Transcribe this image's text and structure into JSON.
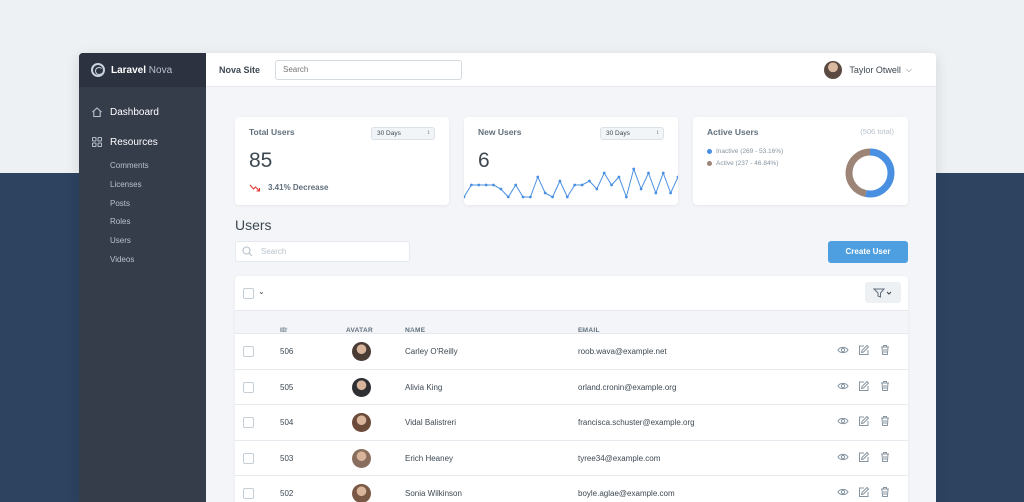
{
  "brand": {
    "name_bold": "Laravel",
    "name_light": " Nova"
  },
  "sidebar": {
    "dashboard_label": "Dashboard",
    "resources_label": "Resources",
    "items": [
      {
        "label": "Comments"
      },
      {
        "label": "Licenses"
      },
      {
        "label": "Posts"
      },
      {
        "label": "Roles"
      },
      {
        "label": "Users"
      },
      {
        "label": "Videos"
      }
    ]
  },
  "header": {
    "site_name": "Nova Site",
    "search_placeholder": "Search",
    "user_name": "Taylor Otwell"
  },
  "cards": {
    "total_users": {
      "title": "Total Users",
      "range": "30 Days",
      "value": "85",
      "trend": "3.41% Decrease"
    },
    "new_users": {
      "title": "New Users",
      "range": "30 Days",
      "value": "6",
      "sparkline": [
        1,
        4,
        4,
        4,
        4,
        3,
        1,
        4,
        1,
        1,
        6,
        2,
        1,
        5,
        1,
        4,
        4,
        5,
        3,
        7,
        4,
        6,
        1,
        8,
        3,
        7,
        2,
        7,
        2,
        6
      ]
    },
    "active_users": {
      "title": "Active Users",
      "total": "(506 total)",
      "segments": [
        {
          "label": "Inactive (269 - 53.16%)",
          "value": 269,
          "color": "#4a90e2"
        },
        {
          "label": "Active (237 - 46.84%)",
          "value": 237,
          "color": "#9c8476"
        }
      ]
    }
  },
  "users": {
    "title": "Users",
    "search_placeholder": "Search",
    "create_label": "Create User",
    "columns": {
      "id": "ID",
      "avatar": "AVATAR",
      "name": "NAME",
      "email": "EMAIL"
    },
    "rows": [
      {
        "id": "506",
        "name": "Carley O'Reilly",
        "email": "roob.wava@example.net",
        "avatar_color": "#4a3b35"
      },
      {
        "id": "505",
        "name": "Alivia King",
        "email": "orland.cronin@example.org",
        "avatar_color": "#2e3033"
      },
      {
        "id": "504",
        "name": "Vidal Balistreri",
        "email": "francisca.schuster@example.org",
        "avatar_color": "#6b4a3a"
      },
      {
        "id": "503",
        "name": "Erich Heaney",
        "email": "tyree34@example.com",
        "avatar_color": "#8a6e5d"
      },
      {
        "id": "502",
        "name": "Sonia Wilkinson",
        "email": "boyle.aglae@example.com",
        "avatar_color": "#7a5846"
      }
    ]
  },
  "colors": {
    "sidebar": "#353c4a",
    "accent": "#4e9fe0",
    "page_dark": "#2d4360"
  }
}
